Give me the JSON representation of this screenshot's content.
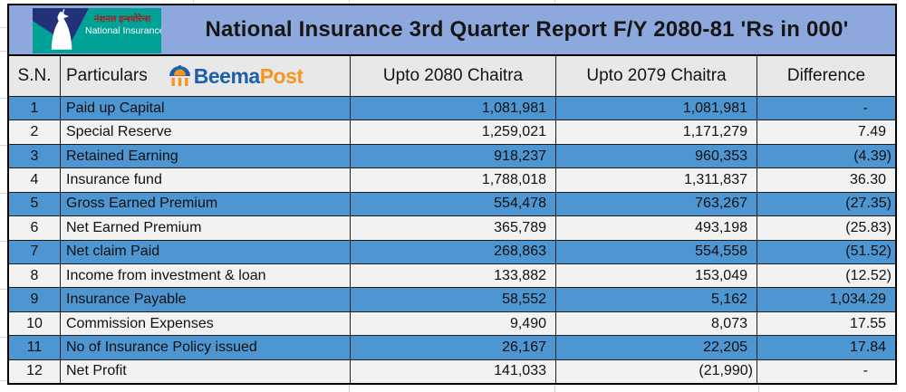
{
  "banner": {
    "title": "National Insurance 3rd Quarter Report F/Y 2080-81  'Rs in 000'",
    "bg_color": "#8DA8DC",
    "logo": {
      "nepali_name": "नंशनल इन्श्योरेन्स",
      "english_name": "National Insurance",
      "teal_color": "#00A296",
      "navy_color": "#223178"
    }
  },
  "watermark": {
    "beema": "Beema",
    "post": "Post",
    "beema_color": "#1B5FAD",
    "post_color": "#F7941E",
    "icon": "umbrella-pavilion-icon"
  },
  "table": {
    "headers": {
      "sn": "S.N.",
      "particulars": "Particulars",
      "upto_2080": "Upto 2080 Chaitra",
      "upto_2079": "Upto 2079 Chaitra",
      "difference": "Difference"
    },
    "row_colors": {
      "odd": "#4E96D2",
      "even": "#F2F2F2",
      "header_bg": "#E8E8E8"
    },
    "rows": [
      {
        "sn": "1",
        "particulars": "Paid up Capital",
        "upto_2080": "1,081,981",
        "upto_2079": "1,081,981",
        "difference": "-"
      },
      {
        "sn": "2",
        "particulars": "Special Reserve",
        "upto_2080": "1,259,021",
        "upto_2079": "1,171,279",
        "difference": "7.49"
      },
      {
        "sn": "3",
        "particulars": "Retained Earning",
        "upto_2080": "918,237",
        "upto_2079": "960,353",
        "difference": "(4.39)"
      },
      {
        "sn": "4",
        "particulars": "Insurance fund",
        "upto_2080": "1,788,018",
        "upto_2079": "1,311,837",
        "difference": "36.30"
      },
      {
        "sn": "5",
        "particulars": "Gross Earned Premium",
        "upto_2080": "554,478",
        "upto_2079": "763,267",
        "difference": "(27.35)"
      },
      {
        "sn": "6",
        "particulars": "Net Earned Premium",
        "upto_2080": "365,789",
        "upto_2079": "493,198",
        "difference": "(25.83)"
      },
      {
        "sn": "7",
        "particulars": "Net claim Paid",
        "upto_2080": "268,863",
        "upto_2079": "554,558",
        "difference": "(51.52)"
      },
      {
        "sn": "8",
        "particulars": "Income from investment & loan",
        "upto_2080": "133,882",
        "upto_2079": "153,049",
        "difference": "(12.52)"
      },
      {
        "sn": "9",
        "particulars": "Insurance Payable",
        "upto_2080": "58,552",
        "upto_2079": "5,162",
        "difference": "1,034.29"
      },
      {
        "sn": "10",
        "particulars": "Commission Expenses",
        "upto_2080": "9,490",
        "upto_2079": "8,073",
        "difference": "17.55"
      },
      {
        "sn": "11",
        "particulars": "No of Insurance Policy issued",
        "upto_2080": "26,167",
        "upto_2079": "22,205",
        "difference": "17.84"
      },
      {
        "sn": "12",
        "particulars": "Net Profit",
        "upto_2080": "141,033",
        "upto_2079": "(21,990)",
        "difference": "-"
      }
    ]
  }
}
